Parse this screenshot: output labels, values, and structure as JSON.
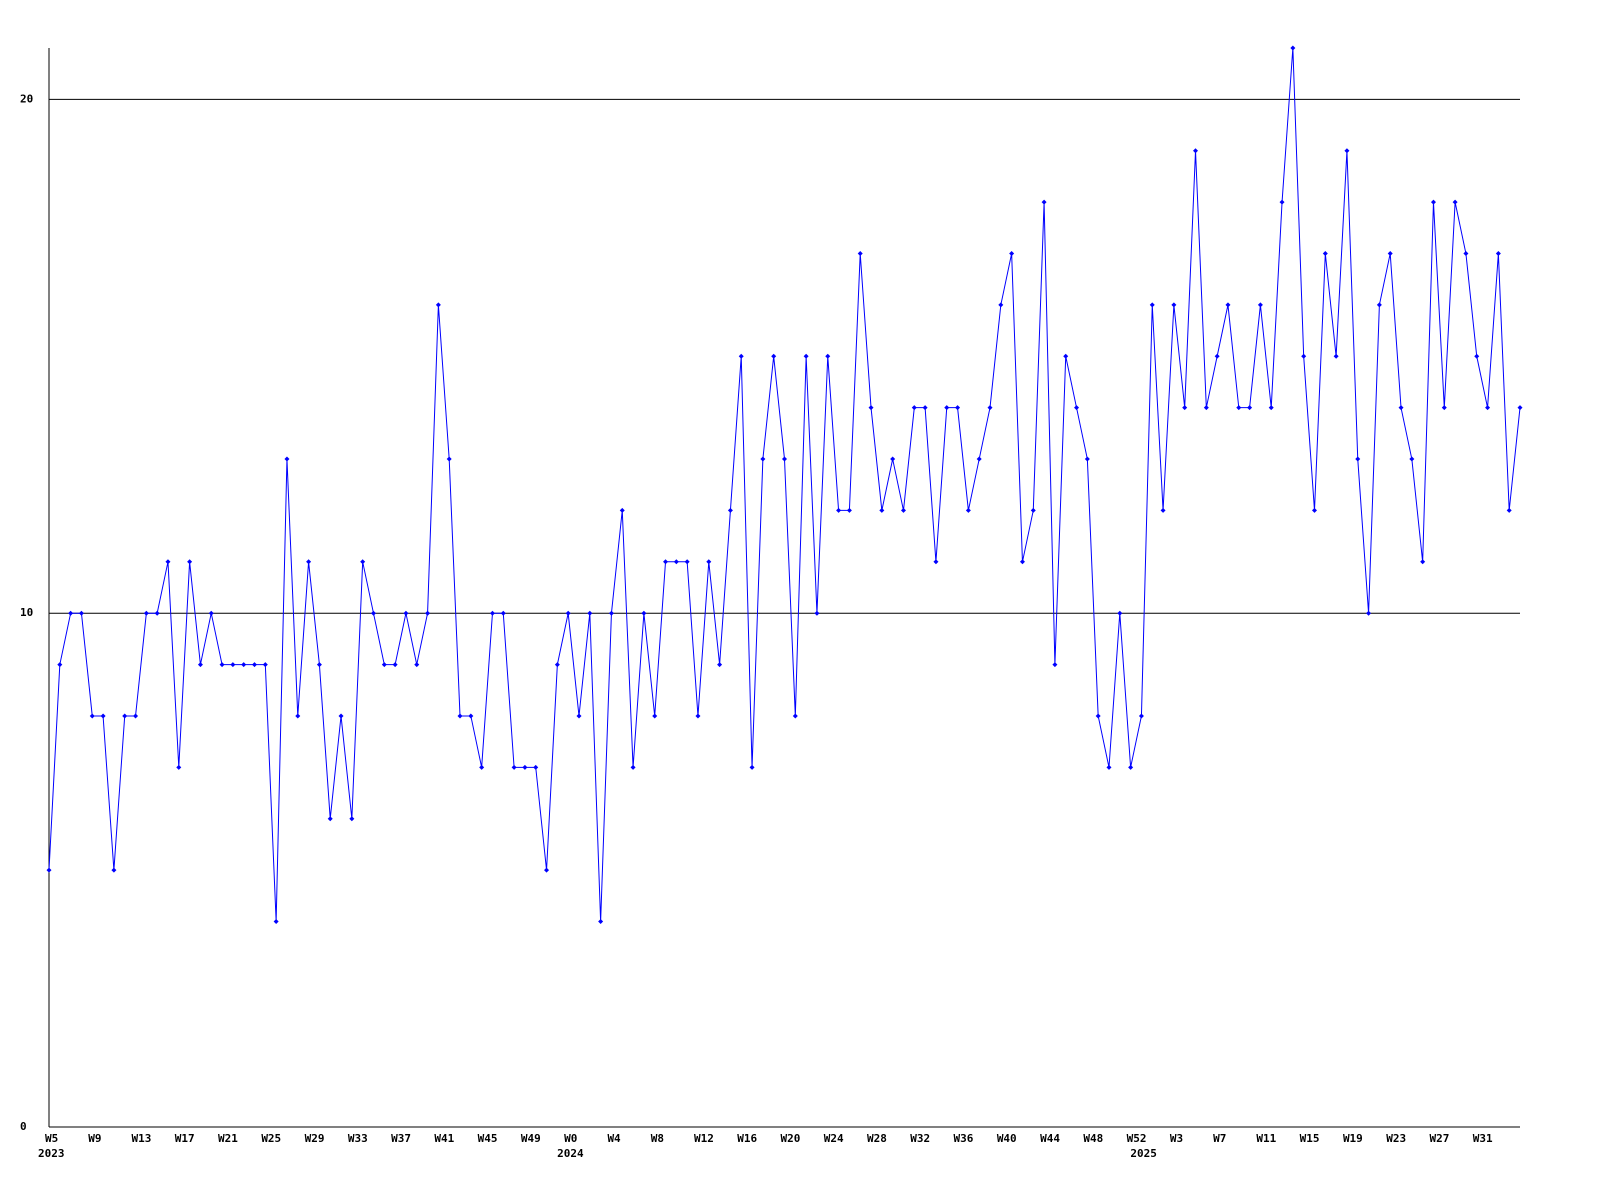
{
  "chart_data": {
    "type": "line",
    "categories": [
      "W5",
      null,
      null,
      null,
      "W9",
      null,
      null,
      null,
      "W13",
      null,
      null,
      null,
      "W17",
      null,
      null,
      null,
      "W21",
      null,
      null,
      null,
      "W25",
      null,
      null,
      null,
      "W29",
      null,
      null,
      null,
      "W33",
      null,
      null,
      null,
      "W37",
      null,
      null,
      null,
      "W41",
      null,
      null,
      null,
      "W45",
      null,
      null,
      null,
      "W49",
      null,
      null,
      null,
      "W0",
      null,
      null,
      null,
      "W4",
      null,
      null,
      null,
      "W8",
      null,
      null,
      null,
      "W12",
      null,
      null,
      null,
      "W16",
      null,
      null,
      null,
      "W20",
      null,
      null,
      null,
      "W24",
      null,
      null,
      null,
      "W28",
      null,
      null,
      null,
      "W32",
      null,
      null,
      null,
      "W36",
      null,
      null,
      null,
      "W40",
      null,
      null,
      null,
      "W44",
      null,
      null,
      null,
      "W48",
      null,
      null,
      null,
      "W52",
      null,
      null,
      null,
      "W3",
      null,
      null,
      null,
      "W7",
      null,
      null,
      null,
      "W11",
      null,
      null,
      null,
      "W15",
      null,
      null,
      null,
      "W19",
      null,
      null,
      null,
      "W23",
      null,
      null,
      null,
      "W27",
      null,
      null,
      null,
      "W31",
      null,
      null,
      null,
      null
    ],
    "year_labels": [
      "2023",
      null,
      null,
      null,
      null,
      null,
      null,
      null,
      null,
      null,
      null,
      null,
      null,
      null,
      null,
      null,
      null,
      null,
      null,
      null,
      null,
      null,
      null,
      null,
      null,
      null,
      null,
      null,
      null,
      null,
      null,
      null,
      null,
      null,
      null,
      null,
      null,
      null,
      null,
      null,
      null,
      null,
      null,
      null,
      null,
      null,
      null,
      null,
      "2024",
      null,
      null,
      null,
      null,
      null,
      null,
      null,
      null,
      null,
      null,
      null,
      null,
      null,
      null,
      null,
      null,
      null,
      null,
      null,
      null,
      null,
      null,
      null,
      null,
      null,
      null,
      null,
      null,
      null,
      null,
      null,
      null,
      null,
      null,
      null,
      null,
      null,
      null,
      null,
      null,
      null,
      null,
      null,
      null,
      null,
      null,
      null,
      null,
      null,
      null,
      null,
      null,
      "2025",
      null,
      null,
      null,
      null,
      null,
      null,
      null,
      null,
      null,
      null,
      null,
      null,
      null,
      null,
      null,
      null,
      null,
      null,
      null,
      null,
      null,
      null,
      null,
      null,
      null,
      null,
      null,
      null,
      null,
      null,
      null,
      null,
      null,
      null,
      null
    ],
    "values": [
      5,
      9,
      10,
      10,
      8,
      8,
      5,
      8,
      8,
      10,
      10,
      11,
      7,
      11,
      9,
      10,
      9,
      9,
      9,
      9,
      9,
      4,
      13,
      8,
      11,
      9,
      6,
      8,
      6,
      11,
      10,
      9,
      9,
      10,
      9,
      10,
      16,
      13,
      8,
      8,
      7,
      10,
      10,
      7,
      7,
      7,
      5,
      9,
      10,
      8,
      10,
      4,
      10,
      12,
      7,
      10,
      8,
      11,
      11,
      11,
      8,
      11,
      9,
      12,
      15,
      7,
      13,
      15,
      13,
      8,
      15,
      10,
      15,
      12,
      12,
      17,
      14,
      12,
      13,
      12,
      14,
      14,
      11,
      14,
      14,
      12,
      13,
      14,
      16,
      17,
      11,
      12,
      18,
      9,
      15,
      14,
      13,
      8,
      7,
      10,
      7,
      8,
      16,
      12,
      16,
      14,
      19,
      14,
      15,
      16,
      14,
      14,
      16,
      14,
      18,
      21,
      15,
      12,
      17,
      15,
      19,
      13,
      10,
      16,
      17,
      14,
      13,
      11,
      18,
      14,
      18,
      17,
      15,
      14,
      17,
      12,
      14
    ],
    "color": "#0000ff",
    "ylim": [
      0,
      21
    ],
    "yticks": [
      0,
      10,
      20
    ],
    "grid": true
  }
}
